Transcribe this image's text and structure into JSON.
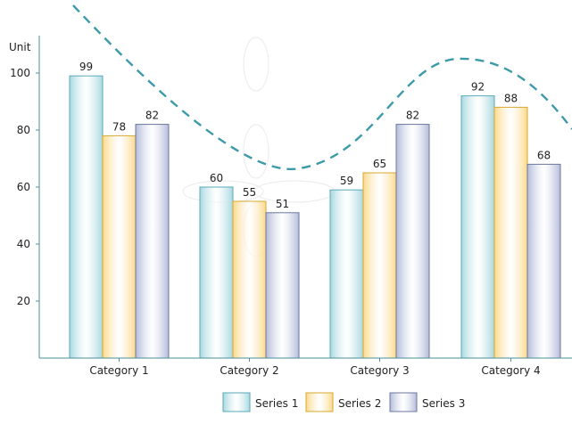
{
  "chart_data": {
    "type": "bar",
    "ylabel": "Unit",
    "ylim": [
      0,
      100
    ],
    "yticks": [
      20,
      40,
      60,
      80,
      100
    ],
    "grid": false,
    "legend_position": "bottom",
    "categories": [
      "Category 1",
      "Category 2",
      "Category 3",
      "Category 4"
    ],
    "series": [
      {
        "name": "Series 1",
        "values": [
          99,
          60,
          59,
          92
        ],
        "color": "#a8d8e0",
        "stroke": "#5aaab8"
      },
      {
        "name": "Series 2",
        "values": [
          78,
          55,
          65,
          88
        ],
        "color": "#fcd98a",
        "stroke": "#d9a830"
      },
      {
        "name": "Series 3",
        "values": [
          82,
          51,
          82,
          68
        ],
        "color": "#b3bcd8",
        "stroke": "#6c779e"
      }
    ],
    "trend_line": {
      "style": "dashed",
      "color": "#3d9aa8"
    }
  }
}
